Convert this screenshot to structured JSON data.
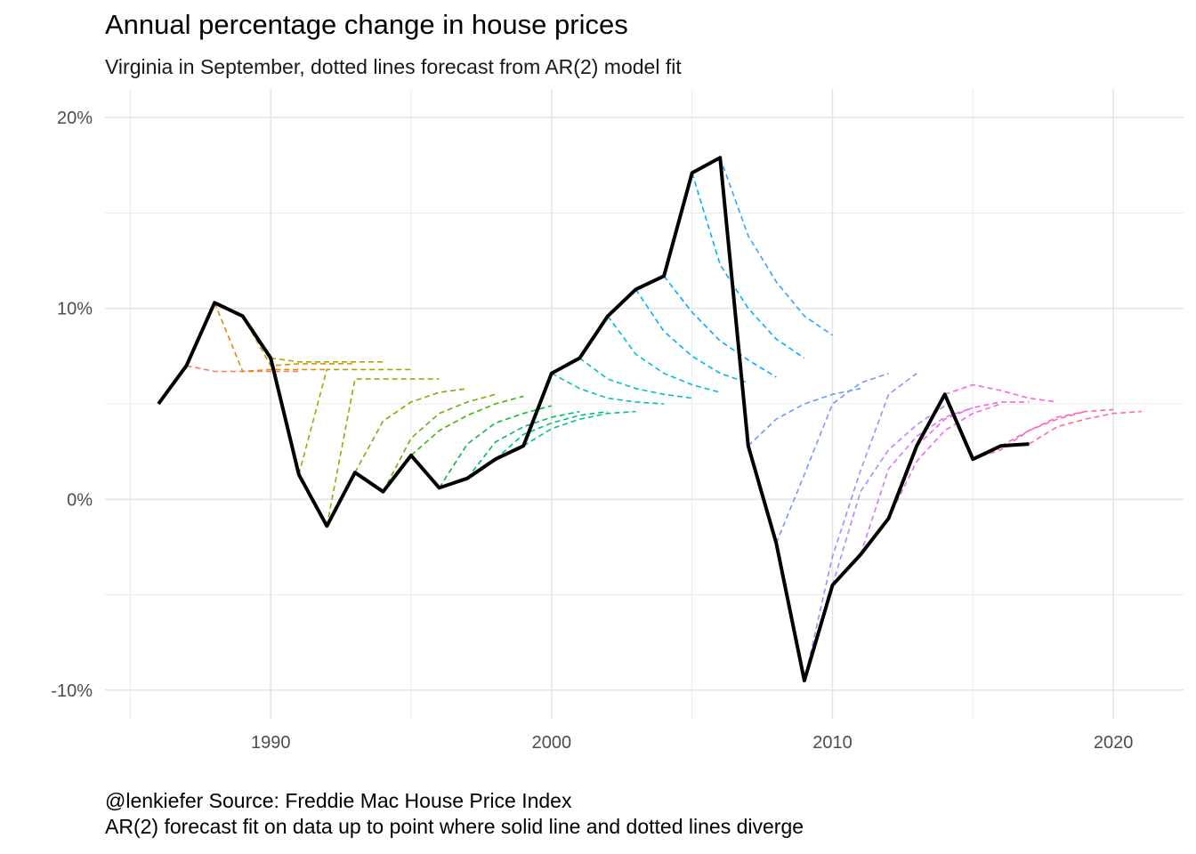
{
  "chart_data": {
    "type": "line",
    "title": "Annual percentage change in house prices",
    "subtitle": "Virginia in September, dotted lines forecast from AR(2) model fit",
    "caption": [
      "@lenkiefer Source: Freddie Mac House Price Index",
      "AR(2) forecast fit on data up to point where solid line and dotted lines diverge"
    ],
    "xlabel": "",
    "ylabel": "",
    "xlim": [
      1984.1,
      2022.5
    ],
    "ylim": [
      -11.5,
      21.5
    ],
    "x_ticks": [
      {
        "value": 1990,
        "label": "1990"
      },
      {
        "value": 2000,
        "label": "2000"
      },
      {
        "value": 2010,
        "label": "2010"
      },
      {
        "value": 2020,
        "label": "2020"
      }
    ],
    "y_ticks": [
      {
        "value": -10,
        "label": "-10%"
      },
      {
        "value": 0,
        "label": "0%"
      },
      {
        "value": 10,
        "label": "10%"
      },
      {
        "value": 20,
        "label": "20%"
      }
    ],
    "grid": true,
    "legend": "none",
    "actual": {
      "color": "#000000",
      "x": [
        1986,
        1987,
        1988,
        1989,
        1990,
        1991,
        1992,
        1993,
        1994,
        1995,
        1996,
        1997,
        1998,
        1999,
        2000,
        2001,
        2002,
        2003,
        2004,
        2005,
        2006,
        2007,
        2008,
        2009,
        2010,
        2011,
        2012,
        2013,
        2014,
        2015,
        2016,
        2017
      ],
      "y": [
        5.0,
        7.0,
        10.3,
        9.6,
        7.4,
        1.3,
        -1.4,
        1.4,
        0.4,
        2.3,
        0.6,
        1.1,
        2.1,
        2.8,
        6.6,
        7.4,
        9.6,
        11.0,
        11.7,
        17.1,
        17.9,
        2.8,
        -2.3,
        -9.5,
        -4.5,
        -2.9,
        -1.0,
        2.8,
        5.5,
        2.1,
        2.8,
        2.9
      ]
    },
    "forecasts": [
      {
        "color": "#F8766D",
        "x": [
          1987,
          1988,
          1989,
          1990,
          1991
        ],
        "y": [
          7.0,
          6.7,
          6.7,
          6.7,
          6.7
        ]
      },
      {
        "color": "#E58700",
        "x": [
          1988,
          1989,
          1990,
          1991,
          1992
        ],
        "y": [
          10.3,
          6.7,
          6.8,
          6.8,
          6.8
        ]
      },
      {
        "color": "#C99800",
        "x": [
          1989,
          1990,
          1991,
          1992,
          1993
        ],
        "y": [
          9.6,
          7.0,
          7.1,
          7.1,
          7.1
        ]
      },
      {
        "color": "#B8A000",
        "x": [
          1990,
          1991,
          1992,
          1993,
          1994
        ],
        "y": [
          7.4,
          7.2,
          7.2,
          7.2,
          7.2
        ]
      },
      {
        "color": "#A9A400",
        "x": [
          1991,
          1992,
          1993,
          1994,
          1995
        ],
        "y": [
          1.3,
          6.8,
          6.8,
          6.8,
          6.8
        ]
      },
      {
        "color": "#A3A500",
        "x": [
          1992,
          1993,
          1994,
          1995,
          1996
        ],
        "y": [
          -1.4,
          6.3,
          6.3,
          6.3,
          6.3
        ]
      },
      {
        "color": "#8CA800",
        "x": [
          1993,
          1994,
          1995,
          1996,
          1997
        ],
        "y": [
          1.4,
          4.1,
          5.1,
          5.6,
          5.8
        ]
      },
      {
        "color": "#6BB100",
        "x": [
          1994,
          1995,
          1996,
          1997,
          1998
        ],
        "y": [
          0.4,
          3.2,
          4.5,
          5.1,
          5.5
        ]
      },
      {
        "color": "#39B600",
        "x": [
          1995,
          1996,
          1997,
          1998,
          1999
        ],
        "y": [
          2.3,
          3.6,
          4.4,
          5.0,
          5.4
        ]
      },
      {
        "color": "#00BA38",
        "x": [
          1996,
          1997,
          1998,
          1999,
          2000
        ],
        "y": [
          0.6,
          2.9,
          4.0,
          4.5,
          4.9
        ]
      },
      {
        "color": "#00BC59",
        "x": [
          1997,
          1998,
          1999,
          2000,
          2001
        ],
        "y": [
          1.1,
          3.0,
          3.8,
          4.3,
          4.6
        ]
      },
      {
        "color": "#00BF7D",
        "x": [
          1998,
          1999,
          2000,
          2001,
          2002
        ],
        "y": [
          2.1,
          3.4,
          4.0,
          4.4,
          4.6
        ]
      },
      {
        "color": "#00C094",
        "x": [
          1999,
          2000,
          2001,
          2002,
          2003
        ],
        "y": [
          2.8,
          3.7,
          4.2,
          4.5,
          4.6
        ]
      },
      {
        "color": "#00C0AF",
        "x": [
          2000,
          2001,
          2002,
          2003,
          2004
        ],
        "y": [
          6.6,
          5.8,
          5.3,
          5.1,
          5.0
        ]
      },
      {
        "color": "#00BFC4",
        "x": [
          2001,
          2002,
          2003,
          2004,
          2005
        ],
        "y": [
          7.4,
          6.3,
          5.8,
          5.5,
          5.3
        ]
      },
      {
        "color": "#00BBD8",
        "x": [
          2002,
          2003,
          2004,
          2005,
          2006
        ],
        "y": [
          9.6,
          7.6,
          6.6,
          6.0,
          5.6
        ]
      },
      {
        "color": "#00B4EF",
        "x": [
          2003,
          2004,
          2005,
          2006,
          2007
        ],
        "y": [
          11.0,
          8.8,
          7.5,
          6.6,
          6.1
        ]
      },
      {
        "color": "#00A9FF",
        "x": [
          2004,
          2005,
          2006,
          2007,
          2008
        ],
        "y": [
          11.7,
          9.8,
          8.3,
          7.3,
          6.4
        ]
      },
      {
        "color": "#00B0F6",
        "x": [
          2005,
          2006,
          2007,
          2008,
          2009
        ],
        "y": [
          17.1,
          12.3,
          10.0,
          8.4,
          7.4
        ]
      },
      {
        "color": "#35A2FF",
        "x": [
          2006,
          2007,
          2008,
          2009,
          2010
        ],
        "y": [
          17.9,
          13.8,
          11.4,
          9.6,
          8.6
        ]
      },
      {
        "color": "#619CFF",
        "x": [
          2007,
          2008,
          2009,
          2010,
          2011
        ],
        "y": [
          2.8,
          4.2,
          5.0,
          5.5,
          5.8
        ]
      },
      {
        "color": "#7E94FF",
        "x": [
          2008,
          2009,
          2010,
          2011,
          2012
        ],
        "y": [
          -2.3,
          1.3,
          5.0,
          6.1,
          6.6
        ]
      },
      {
        "color": "#9B8EFF",
        "x": [
          2009,
          2010,
          2011,
          2012,
          2013
        ],
        "y": [
          -9.5,
          -3.0,
          1.5,
          5.5,
          6.6
        ]
      },
      {
        "color": "#B983FF",
        "x": [
          2010,
          2011,
          2012,
          2013,
          2014
        ],
        "y": [
          -4.5,
          0.4,
          2.6,
          3.9,
          4.9
        ]
      },
      {
        "color": "#D377FB",
        "x": [
          2011,
          2012,
          2013,
          2014,
          2015
        ],
        "y": [
          -2.9,
          1.6,
          3.3,
          4.3,
          4.8
        ]
      },
      {
        "color": "#E76BF3",
        "x": [
          2012,
          2013,
          2014,
          2015,
          2016
        ],
        "y": [
          -1.0,
          2.0,
          3.6,
          4.5,
          5.0
        ]
      },
      {
        "color": "#F564E3",
        "x": [
          2013,
          2014,
          2015,
          2016,
          2017
        ],
        "y": [
          2.8,
          4.2,
          4.8,
          5.1,
          5.1
        ]
      },
      {
        "color": "#FA62DB",
        "x": [
          2014,
          2015,
          2016,
          2017,
          2018
        ],
        "y": [
          5.5,
          6.0,
          5.7,
          5.3,
          5.1
        ]
      },
      {
        "color": "#FF61C3",
        "x": [
          2015,
          2016,
          2017,
          2018,
          2019
        ],
        "y": [
          2.1,
          2.6,
          3.6,
          4.2,
          4.6
        ]
      },
      {
        "color": "#FF65AC",
        "x": [
          2016,
          2017,
          2018,
          2019,
          2020
        ],
        "y": [
          2.8,
          3.6,
          4.3,
          4.6,
          4.7
        ]
      },
      {
        "color": "#FF6C91",
        "x": [
          2017,
          2018,
          2019,
          2020,
          2021
        ],
        "y": [
          2.9,
          3.8,
          4.2,
          4.5,
          4.6
        ]
      }
    ]
  }
}
